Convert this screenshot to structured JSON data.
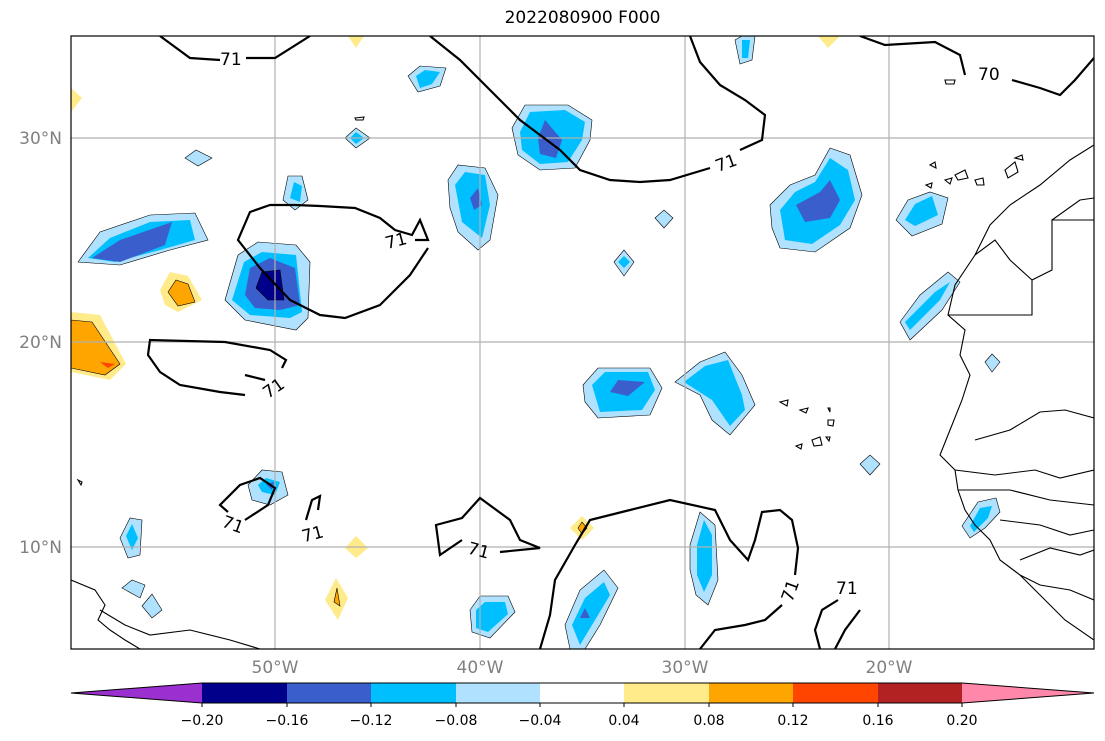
{
  "title": "2022080900 F000",
  "map": {
    "lat_labels": [
      "30°N",
      "20°N",
      "10°N"
    ],
    "lon_labels": [
      "50°W",
      "40°W",
      "30°W",
      "20°W"
    ],
    "contour_labels": [
      "71",
      "71",
      "71",
      "71",
      "71",
      "71",
      "71",
      "71",
      "71",
      "70"
    ]
  },
  "colorbar": {
    "tick_labels": [
      "−0.20",
      "−0.16",
      "−0.12",
      "−0.08",
      "−0.04",
      "0.04",
      "0.08",
      "0.12",
      "0.16",
      "0.20"
    ],
    "colors": [
      "#9b30d0",
      "#00008b",
      "#3a5fcd",
      "#00bfff",
      "#b0e2ff",
      "#ffffff",
      "#ffeb8a",
      "#ffa500",
      "#ff4500",
      "#b22222",
      "#ff88aa"
    ]
  }
}
